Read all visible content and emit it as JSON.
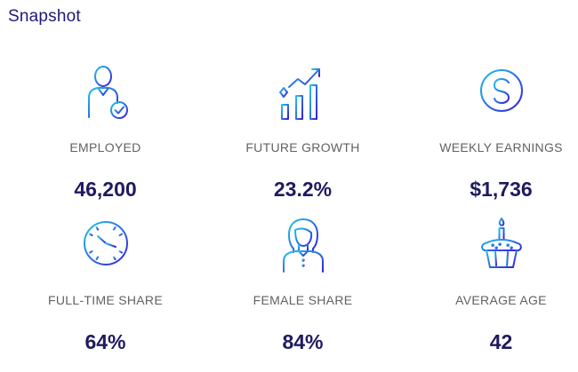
{
  "title": "Snapshot",
  "gradient": {
    "start": "#21c4ec",
    "end": "#3520d9"
  },
  "colors": {
    "title": "#1e1a78",
    "label": "#5f6266",
    "value": "#1e1a60"
  },
  "stats": [
    {
      "icon": "employed-person-icon",
      "label": "EMPLOYED",
      "value": "46,200"
    },
    {
      "icon": "growth-chart-icon",
      "label": "FUTURE GROWTH",
      "value": "23.2%"
    },
    {
      "icon": "dollar-coin-icon",
      "label": "WEEKLY EARNINGS",
      "value": "$1,736"
    },
    {
      "icon": "clock-icon",
      "label": "FULL-TIME SHARE",
      "value": "64%"
    },
    {
      "icon": "female-person-icon",
      "label": "FEMALE SHARE",
      "value": "84%"
    },
    {
      "icon": "birthday-cupcake-icon",
      "label": "AVERAGE AGE",
      "value": "42"
    }
  ]
}
